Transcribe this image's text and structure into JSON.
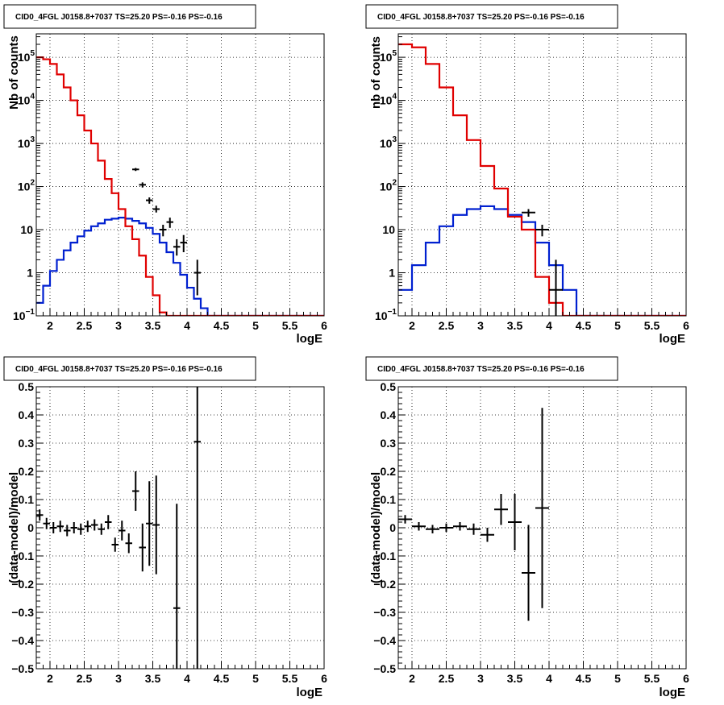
{
  "colors": {
    "data": "#000000",
    "model": "#e00000",
    "component": "#0020d0",
    "grid": "#000000",
    "frame": "#000000"
  },
  "chart_data": [
    {
      "type": "line",
      "title": "CID0_4FGL J0158.8+7037 TS=25.20 PS=-0.16 PS=-0.16",
      "xlabel": "logE",
      "ylabel": "Nb of counts",
      "xlim": [
        1.8,
        6
      ],
      "ylim": [
        0.1,
        350000
      ],
      "yscale": "log",
      "grid": true,
      "x_ticks": [
        2,
        2.5,
        3,
        3.5,
        4,
        4.5,
        5,
        5.5,
        6
      ],
      "x_tick_labels": [
        "2",
        "2.5",
        "3",
        "3.5",
        "4",
        "4.5",
        "5",
        "5.5",
        "6"
      ],
      "y_tick_labels": [
        {
          "value": 0.1,
          "base": "10",
          "exp": "−1"
        },
        {
          "value": 1,
          "base": "1",
          "exp": ""
        },
        {
          "value": 10,
          "base": "10",
          "exp": ""
        },
        {
          "value": 100,
          "base": "10",
          "exp": "2"
        },
        {
          "value": 1000,
          "base": "10",
          "exp": "3"
        },
        {
          "value": 10000,
          "base": "10",
          "exp": "4"
        },
        {
          "value": 100000,
          "base": "10",
          "exp": "5"
        }
      ],
      "bin_edges": [
        1.8,
        1.9,
        2.0,
        2.1,
        2.2,
        2.3,
        2.4,
        2.5,
        2.6,
        2.7,
        2.8,
        2.9,
        3.0,
        3.1,
        3.2,
        3.3,
        3.4,
        3.5,
        3.6,
        3.7,
        3.8,
        3.9,
        4.0,
        4.1,
        4.2,
        4.3,
        4.4,
        4.5,
        4.6,
        4.7,
        4.8,
        4.9,
        5.0,
        5.1,
        5.2,
        5.3,
        5.4,
        5.5,
        5.6,
        5.7,
        5.8,
        5.9,
        6.0
      ],
      "series": [
        {
          "role": "model",
          "values": [
            100000,
            90000,
            70000,
            40000,
            20000,
            10000,
            4500,
            2000,
            1000,
            400,
            150,
            70,
            30,
            12,
            6,
            2.5,
            0.8,
            0.3,
            0.12,
            0.1,
            0.1,
            0.1,
            0.1,
            0.1,
            0.1,
            0.1,
            0.1,
            0.1,
            0.1,
            0.1,
            0.1,
            0.1,
            0.1,
            0.1,
            0.1,
            0.1,
            0.1,
            0.1,
            0.1,
            0.1,
            0.1,
            0.1
          ]
        },
        {
          "role": "component",
          "values": [
            0.2,
            0.5,
            1.1,
            2.0,
            3.3,
            5.0,
            7.0,
            9.5,
            12,
            14,
            17,
            18,
            19,
            18,
            16,
            14,
            11,
            8,
            5,
            3,
            1.7,
            0.9,
            0.45,
            0.25,
            0.15,
            0.1,
            0.1,
            0.1,
            0.1,
            0.1,
            0.1,
            0.1,
            0.1,
            0.1,
            0.1,
            0.1,
            0.1,
            0.1,
            0.1,
            0.1,
            0.1,
            0.1
          ]
        }
      ],
      "data_points": [
        {
          "x": 3.25,
          "y": 250,
          "xerr": 0.05,
          "ylo": 230,
          "yhi": 270
        },
        {
          "x": 3.35,
          "y": 110,
          "xerr": 0.05,
          "ylo": 95,
          "yhi": 125
        },
        {
          "x": 3.45,
          "y": 48,
          "xerr": 0.05,
          "ylo": 40,
          "yhi": 56
        },
        {
          "x": 3.55,
          "y": 30,
          "xerr": 0.05,
          "ylo": 25,
          "yhi": 36
        },
        {
          "x": 3.65,
          "y": 10,
          "xerr": 0.05,
          "ylo": 7,
          "yhi": 13
        },
        {
          "x": 3.75,
          "y": 15,
          "xerr": 0.05,
          "ylo": 11,
          "yhi": 19
        },
        {
          "x": 3.85,
          "y": 4,
          "xerr": 0.05,
          "ylo": 2.5,
          "yhi": 6
        },
        {
          "x": 3.95,
          "y": 5,
          "xerr": 0.05,
          "ylo": 3,
          "yhi": 7.5
        },
        {
          "x": 4.15,
          "y": 1,
          "xerr": 0.05,
          "ylo": 0.3,
          "yhi": 2
        }
      ]
    },
    {
      "type": "line",
      "title": "CID0_4FGL J0158.8+7037 TS=25.20 PS=-0.16 PS=-0.16",
      "xlabel": "logE",
      "ylabel": "nb of counts",
      "xlim": [
        1.8,
        6
      ],
      "ylim": [
        0.1,
        350000
      ],
      "yscale": "log",
      "grid": true,
      "x_ticks": [
        2,
        2.5,
        3,
        3.5,
        4,
        4.5,
        5,
        5.5,
        6
      ],
      "x_tick_labels": [
        "2",
        "2.5",
        "3",
        "3.5",
        "4",
        "4.5",
        "5",
        "5.5",
        "6"
      ],
      "y_tick_labels": [
        {
          "value": 0.1,
          "base": "10",
          "exp": "−1"
        },
        {
          "value": 1,
          "base": "1",
          "exp": ""
        },
        {
          "value": 10,
          "base": "10",
          "exp": ""
        },
        {
          "value": 100,
          "base": "10",
          "exp": "2"
        },
        {
          "value": 1000,
          "base": "10",
          "exp": "3"
        },
        {
          "value": 10000,
          "base": "10",
          "exp": "4"
        },
        {
          "value": 100000,
          "base": "10",
          "exp": "5"
        }
      ],
      "bin_edges": [
        1.8,
        2.0,
        2.2,
        2.4,
        2.6,
        2.8,
        3.0,
        3.2,
        3.4,
        3.6,
        3.8,
        4.0,
        4.2,
        4.4,
        4.6,
        4.8,
        5.0,
        5.2,
        5.4,
        5.6,
        5.8,
        6.0
      ],
      "series": [
        {
          "role": "model",
          "values": [
            200000,
            170000,
            70000,
            20000,
            4500,
            1200,
            300,
            90,
            20,
            10,
            0.8,
            0.2,
            0.1,
            0.1,
            0.1,
            0.1,
            0.1,
            0.1,
            0.1,
            0.1,
            0.1
          ]
        },
        {
          "role": "component",
          "values": [
            0.4,
            1.5,
            5,
            12,
            22,
            30,
            35,
            30,
            22,
            15,
            5,
            1.5,
            0.4,
            0.1,
            0.1,
            0.1,
            0.1,
            0.1,
            0.1,
            0.1,
            0.1
          ]
        }
      ],
      "data_points": [
        {
          "x": 3.7,
          "y": 25,
          "xerr": 0.1,
          "ylo": 20,
          "yhi": 30
        },
        {
          "x": 3.9,
          "y": 10,
          "xerr": 0.1,
          "ylo": 7,
          "yhi": 13
        },
        {
          "x": 4.1,
          "y": 0.4,
          "xerr": 0.1,
          "ylo": 0.1,
          "yhi": 2
        }
      ]
    },
    {
      "type": "scatter",
      "title": "CID0_4FGL J0158.8+7037 TS=25.20 PS=-0.16 PS=-0.16",
      "xlabel": "logE",
      "ylabel": "(data-model)/model",
      "xlim": [
        1.8,
        6
      ],
      "ylim": [
        -0.5,
        0.5
      ],
      "grid": true,
      "x_ticks": [
        2,
        2.5,
        3,
        3.5,
        4,
        4.5,
        5,
        5.5,
        6
      ],
      "x_tick_labels": [
        "2",
        "2.5",
        "3",
        "3.5",
        "4",
        "4.5",
        "5",
        "5.5",
        "6"
      ],
      "y_ticks": [
        -0.5,
        -0.4,
        -0.3,
        -0.2,
        -0.1,
        0,
        0.1,
        0.2,
        0.3,
        0.4,
        0.5
      ],
      "y_tick_labels": [
        "−0.5",
        "−0.4",
        "−0.3",
        "−0.2",
        "−0.1",
        "0",
        "0.1",
        "0.2",
        "0.3",
        "0.4",
        "0.5"
      ],
      "points": [
        {
          "x": 1.85,
          "y": 0.045,
          "xerr": 0.05,
          "yerr": 0.02
        },
        {
          "x": 1.95,
          "y": 0.015,
          "xerr": 0.05,
          "yerr": 0.02
        },
        {
          "x": 2.05,
          "y": 0.0,
          "xerr": 0.05,
          "yerr": 0.02
        },
        {
          "x": 2.15,
          "y": 0.005,
          "xerr": 0.05,
          "yerr": 0.02
        },
        {
          "x": 2.25,
          "y": -0.01,
          "xerr": 0.05,
          "yerr": 0.02
        },
        {
          "x": 2.35,
          "y": 0.0,
          "xerr": 0.05,
          "yerr": 0.02
        },
        {
          "x": 2.45,
          "y": -0.005,
          "xerr": 0.05,
          "yerr": 0.02
        },
        {
          "x": 2.55,
          "y": 0.005,
          "xerr": 0.05,
          "yerr": 0.02
        },
        {
          "x": 2.65,
          "y": 0.01,
          "xerr": 0.05,
          "yerr": 0.02
        },
        {
          "x": 2.75,
          "y": -0.005,
          "xerr": 0.05,
          "yerr": 0.02
        },
        {
          "x": 2.85,
          "y": 0.02,
          "xerr": 0.05,
          "yerr": 0.025
        },
        {
          "x": 2.95,
          "y": -0.06,
          "xerr": 0.05,
          "yerr": 0.025
        },
        {
          "x": 3.05,
          "y": -0.01,
          "xerr": 0.05,
          "yerr": 0.035
        },
        {
          "x": 3.15,
          "y": -0.055,
          "xerr": 0.05,
          "yerr": 0.035
        },
        {
          "x": 3.25,
          "y": 0.13,
          "xerr": 0.05,
          "yerr": 0.07
        },
        {
          "x": 3.35,
          "y": -0.07,
          "xerr": 0.05,
          "yerr": 0.085
        },
        {
          "x": 3.45,
          "y": 0.015,
          "xerr": 0.05,
          "yerr": 0.15
        },
        {
          "x": 3.55,
          "y": 0.01,
          "xerr": 0.05,
          "yerr": 0.175
        },
        {
          "x": 3.85,
          "y": -0.285,
          "xerr": 0.05,
          "yerr": 0.37
        },
        {
          "x": 4.15,
          "y": 0.305,
          "xerr": 0.05,
          "yerr": 0.9
        }
      ]
    },
    {
      "type": "scatter",
      "title": "CID0_4FGL J0158.8+7037 TS=25.20 PS=-0.16 PS=-0.16",
      "xlabel": "logE",
      "ylabel": "(data-model)/model",
      "xlim": [
        1.8,
        6
      ],
      "ylim": [
        -0.5,
        0.5
      ],
      "grid": true,
      "x_ticks": [
        2,
        2.5,
        3,
        3.5,
        4,
        4.5,
        5,
        5.5,
        6
      ],
      "x_tick_labels": [
        "2",
        "2.5",
        "3",
        "3.5",
        "4",
        "4.5",
        "5",
        "5.5",
        "6"
      ],
      "y_ticks": [
        -0.5,
        -0.4,
        -0.3,
        -0.2,
        -0.1,
        0,
        0.1,
        0.2,
        0.3,
        0.4,
        0.5
      ],
      "y_tick_labels": [
        "−0.5",
        "−0.4",
        "−0.3",
        "−0.2",
        "−0.1",
        "0",
        "0.1",
        "0.2",
        "0.3",
        "0.4",
        "0.5"
      ],
      "points": [
        {
          "x": 1.9,
          "y": 0.03,
          "xerr": 0.1,
          "yerr": 0.015
        },
        {
          "x": 2.1,
          "y": 0.005,
          "xerr": 0.1,
          "yerr": 0.015
        },
        {
          "x": 2.3,
          "y": -0.005,
          "xerr": 0.1,
          "yerr": 0.015
        },
        {
          "x": 2.5,
          "y": 0.0,
          "xerr": 0.1,
          "yerr": 0.015
        },
        {
          "x": 2.7,
          "y": 0.005,
          "xerr": 0.1,
          "yerr": 0.015
        },
        {
          "x": 2.9,
          "y": -0.005,
          "xerr": 0.1,
          "yerr": 0.02
        },
        {
          "x": 3.1,
          "y": -0.025,
          "xerr": 0.1,
          "yerr": 0.025
        },
        {
          "x": 3.3,
          "y": 0.065,
          "xerr": 0.1,
          "yerr": 0.055
        },
        {
          "x": 3.5,
          "y": 0.02,
          "xerr": 0.1,
          "yerr": 0.1
        },
        {
          "x": 3.7,
          "y": -0.16,
          "xerr": 0.1,
          "yerr": 0.17
        },
        {
          "x": 3.9,
          "y": 0.07,
          "xerr": 0.1,
          "yerr": 0.355
        }
      ]
    }
  ]
}
